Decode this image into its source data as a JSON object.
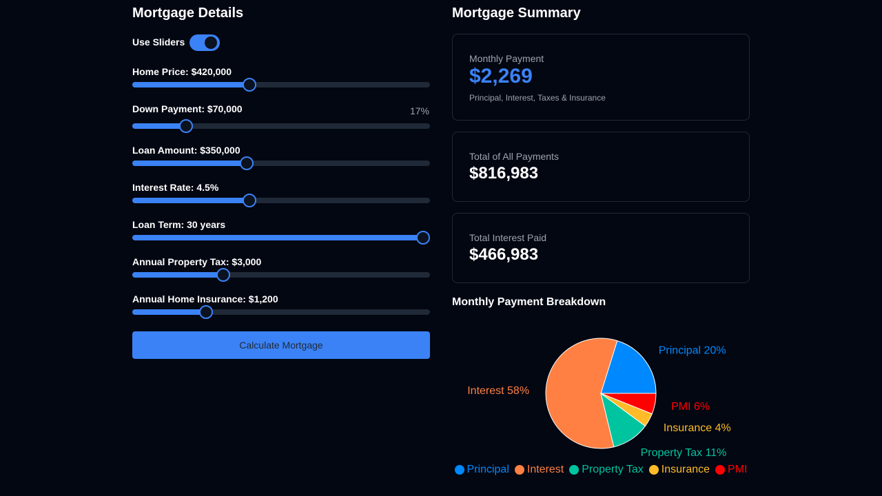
{
  "details": {
    "title": "Mortgage Details",
    "toggle_label": "Use Sliders",
    "sliders": [
      "Home Price: $420,000",
      "Down Payment: $70,000",
      "Loan Amount: $350,000",
      "Interest Rate: 4.5%",
      "Loan Term: 30 years",
      "Annual Property Tax: $3,000",
      "Annual Home Insurance: $1,200"
    ],
    "down_payment_percent": "17%",
    "button": "Calculate Mortgage"
  },
  "summary": {
    "title": "Mortgage Summary",
    "cards": [
      {
        "label": "Monthly Payment",
        "value": "$2,269",
        "note": "Principal, Interest, Taxes & Insurance"
      },
      {
        "label": "Total of All Payments",
        "value": "$816,983"
      },
      {
        "label": "Total Interest Paid",
        "value": "$466,983"
      }
    ]
  },
  "chart_data": {
    "type": "pie",
    "title": "Monthly Payment Breakdown",
    "categories": [
      "Principal",
      "Interest",
      "Property Tax",
      "Insurance",
      "PMI"
    ],
    "values": [
      20,
      58,
      11,
      4,
      6
    ],
    "value_labels": [
      "Principal 20%",
      "Interest 58%",
      "Property Tax 11%",
      "Insurance 4%",
      "PMI 6%"
    ],
    "colors": [
      "#0088FE",
      "#FF8042",
      "#00C49F",
      "#FFBB28",
      "#FF0000"
    ],
    "legend": "bottom"
  }
}
